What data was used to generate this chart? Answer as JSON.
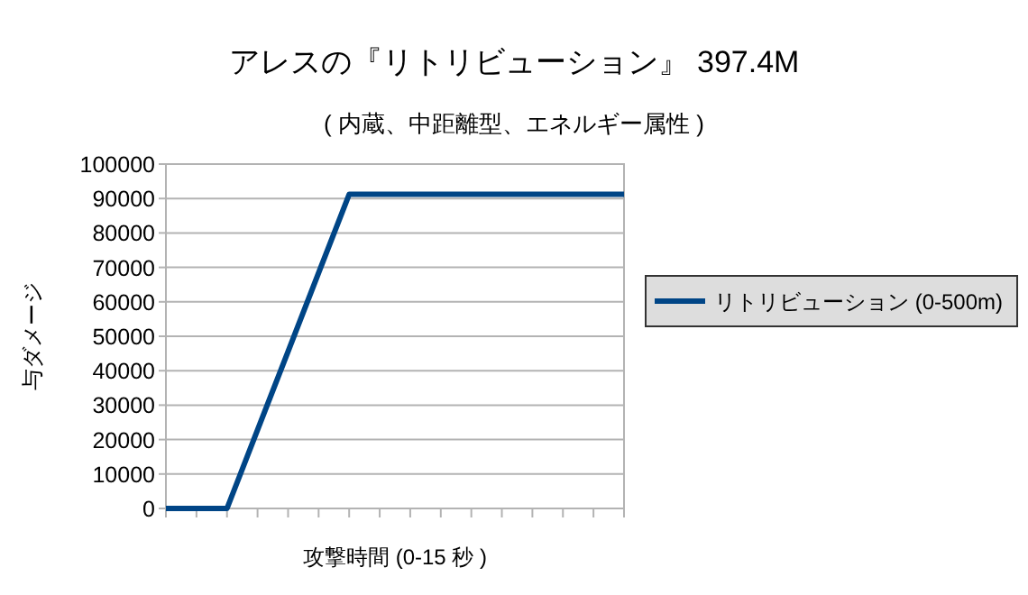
{
  "chart_data": {
    "type": "line",
    "title": "アレスの『リトリビューション』 397.4M",
    "subtitle": "( 内蔵、中距離型、エネルギー属性 )",
    "xlabel": "攻撃時間 (0-15 秒 )",
    "ylabel": "与ダメージ",
    "categories": [
      null,
      null,
      null,
      null,
      null,
      null,
      null,
      null,
      null,
      null,
      null,
      null,
      null,
      null,
      null,
      null
    ],
    "series": [
      {
        "name": "リトリビューション (0-500m)",
        "color": "#004586",
        "values": [
          0,
          0,
          0,
          22800,
          45600,
          68400,
          91200,
          91200,
          91200,
          91200,
          91200,
          91200,
          91200,
          91200,
          91200,
          91200
        ]
      }
    ],
    "ylim": [
      0,
      100000
    ],
    "yticks": [
      0,
      10000,
      20000,
      30000,
      40000,
      50000,
      60000,
      70000,
      80000,
      90000,
      100000
    ],
    "grid": "y",
    "legend": "right",
    "marker": "none",
    "line_style": "solid"
  }
}
